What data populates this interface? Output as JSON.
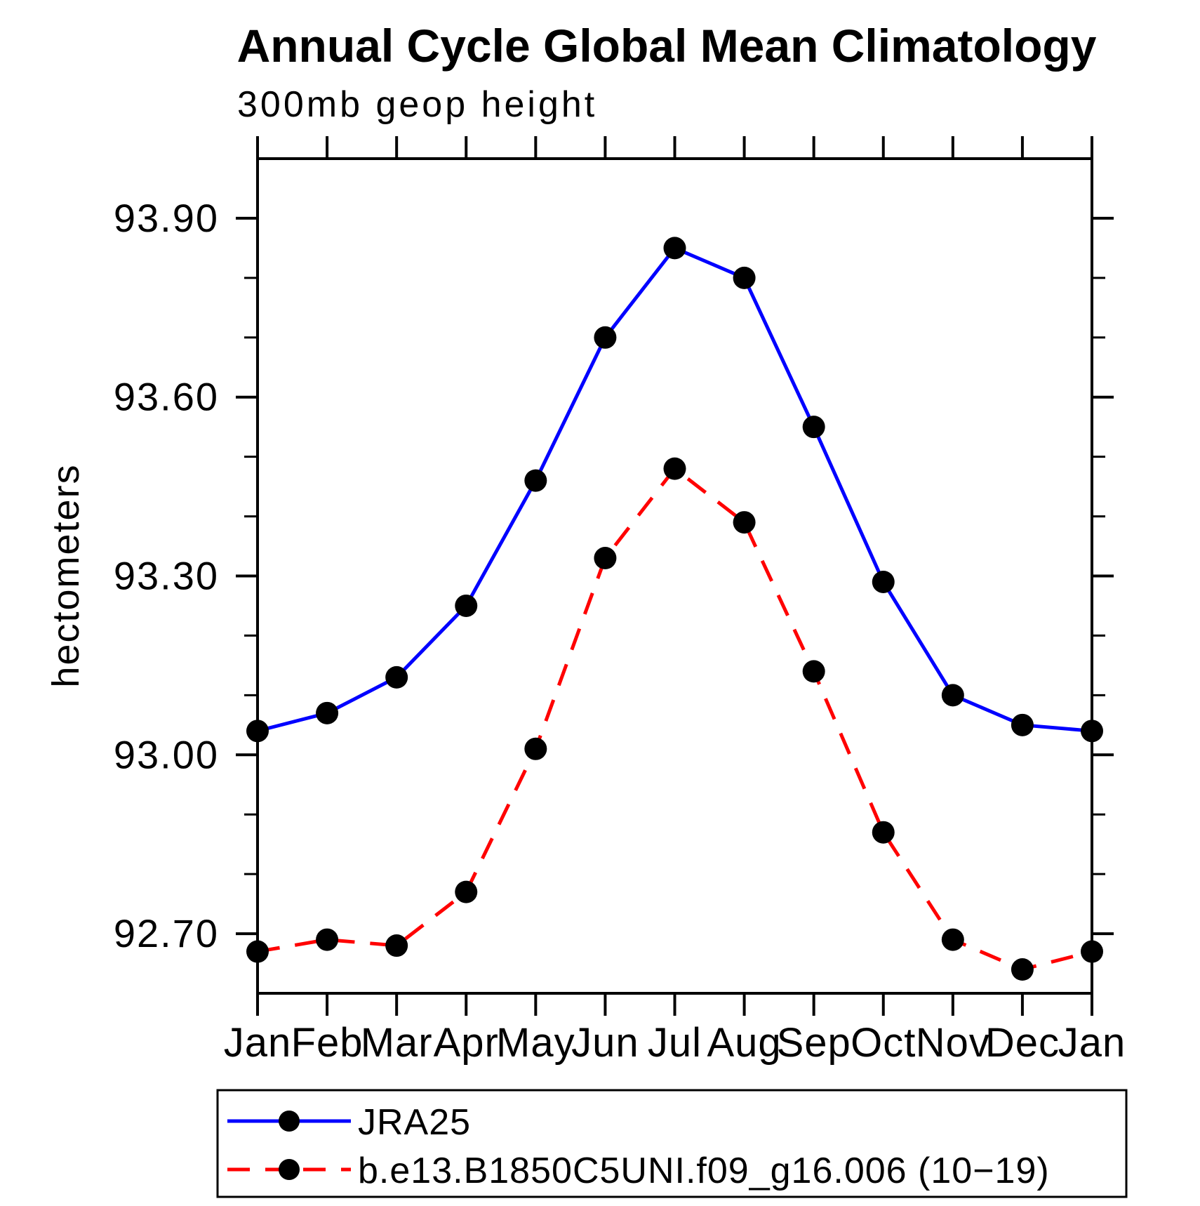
{
  "chart_data": {
    "type": "line",
    "title": "Annual Cycle Global Mean Climatology",
    "subtitle": "300mb geop height",
    "ylabel": "hectometers",
    "categories": [
      "Jan",
      "Feb",
      "Mar",
      "Apr",
      "May",
      "Jun",
      "Jul",
      "Aug",
      "Sep",
      "Oct",
      "Nov",
      "Dec",
      "Jan"
    ],
    "ylim": [
      92.6,
      94.0
    ],
    "ytick_values": [
      92.7,
      93.0,
      93.3,
      93.6,
      93.9
    ],
    "ytick_labels": [
      "92.70",
      "93.00",
      "93.30",
      "93.60",
      "93.90"
    ],
    "minor_tick_values": [
      92.8,
      92.9,
      93.1,
      93.2,
      93.4,
      93.5,
      93.7,
      93.8
    ],
    "grid": false,
    "legend_position": "bottom",
    "axis_color": "#000000",
    "series": [
      {
        "name": "JRA25",
        "color": "#0000ff",
        "style": "solid",
        "marker": "circle",
        "marker_color": "#000000",
        "values": [
          93.04,
          93.07,
          93.13,
          93.25,
          93.46,
          93.7,
          93.85,
          93.8,
          93.55,
          93.29,
          93.1,
          93.05,
          93.04
        ]
      },
      {
        "name": "b.e13.B1850C5UNI.f09_g16.006 (10−19)",
        "color": "#ff0000",
        "style": "dashed",
        "marker": "circle",
        "marker_color": "#000000",
        "values": [
          92.67,
          92.69,
          92.68,
          92.77,
          93.01,
          93.33,
          93.48,
          93.39,
          93.14,
          92.87,
          92.69,
          92.64,
          92.67
        ]
      }
    ]
  }
}
